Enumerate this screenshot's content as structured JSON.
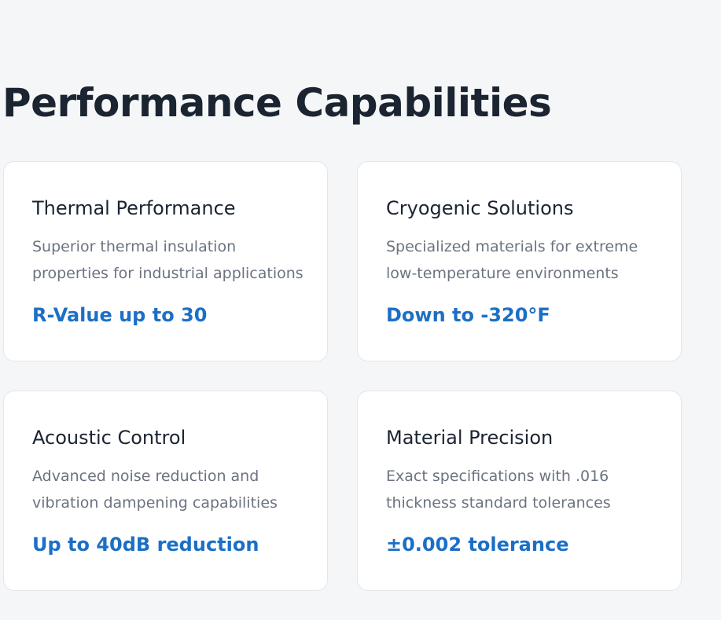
{
  "page": {
    "title": "Performance Capabilities"
  },
  "colors": {
    "background": "#f5f6f8",
    "card": "#ffffff",
    "heading": "#1b2431",
    "body_text": "#6b7380",
    "accent": "#1c6fc6"
  },
  "cards": [
    {
      "title": "Thermal Performance",
      "description": "Superior thermal insulation properties for industrial applications",
      "metric": "R-Value up to 30"
    },
    {
      "title": "Cryogenic Solutions",
      "description": "Specialized materials for extreme low-temperature environments",
      "metric": "Down to -320°F"
    },
    {
      "title": "Acoustic Control",
      "description": "Advanced noise reduction and vibration dampening capabilities",
      "metric": "Up to 40dB reduction"
    },
    {
      "title": "Material Precision",
      "description": "Exact specifications with .016 thickness standard tolerances",
      "metric": "±0.002 tolerance"
    }
  ]
}
